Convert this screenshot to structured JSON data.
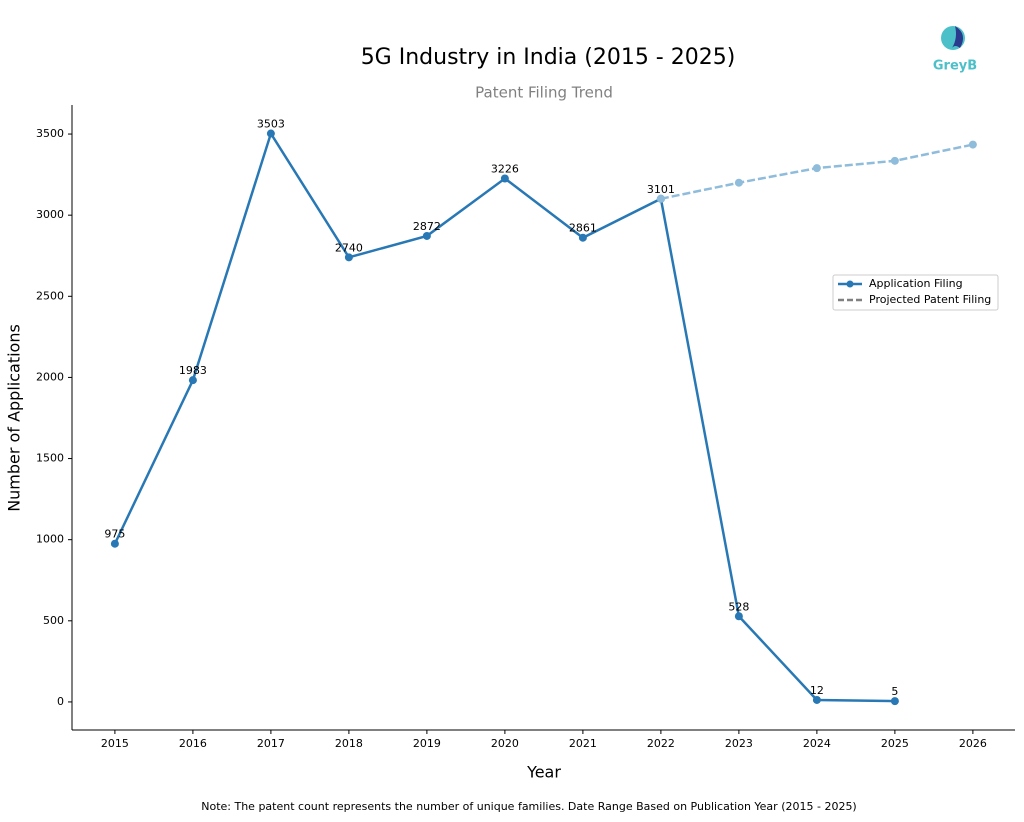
{
  "logo_text": "GreyB",
  "chart_data": {
    "type": "line",
    "title": "5G Industry in India (2015 - 2025)",
    "subtitle": "Patent Filing Trend",
    "x_label": "Year",
    "y_label": "Number of Applications",
    "note": "Note: The patent count represents the number of unique families. Date Range Based on Publication Year (2015 - 2025)",
    "x": [
      2015,
      2016,
      2017,
      2018,
      2019,
      2020,
      2021,
      2022,
      2023,
      2024,
      2025,
      2026
    ],
    "series": [
      {
        "name": "Application Filing",
        "color": "#2878b5",
        "dashed": false,
        "data_labels": true,
        "values": [
          975,
          1983,
          3503,
          2740,
          2872,
          3226,
          2861,
          3101,
          528,
          12,
          5,
          null
        ]
      },
      {
        "name": "Projected Patent Filing",
        "color": "#8fbcdb",
        "legend_color": "#808080",
        "dashed": true,
        "data_labels": false,
        "values": [
          null,
          null,
          null,
          null,
          null,
          null,
          null,
          3101,
          3200,
          3290,
          3335,
          3435
        ]
      }
    ],
    "xlim": [
      2014.45,
      2026.54
    ],
    "xticks": [
      2015,
      2016,
      2017,
      2018,
      2019,
      2020,
      2021,
      2022,
      2023,
      2024,
      2025,
      2026
    ],
    "ylim": [
      -173,
      3679
    ],
    "yticks": [
      0,
      500,
      1000,
      1500,
      2000,
      2500,
      3000,
      3500
    ],
    "grid": false,
    "legend_position": "right"
  }
}
